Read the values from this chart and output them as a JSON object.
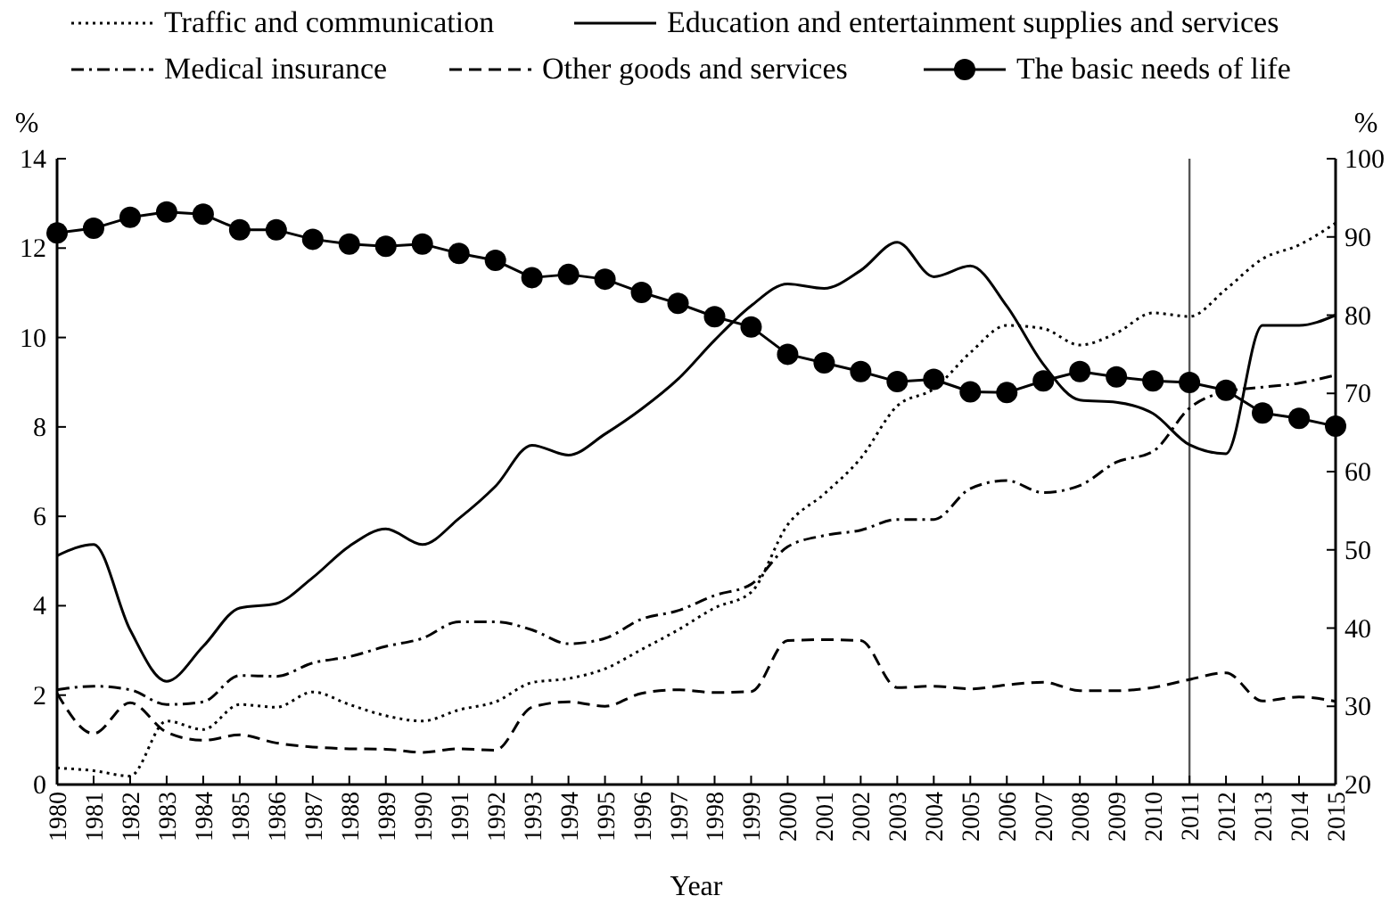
{
  "chart_data": {
    "type": "line",
    "xlabel": "Year",
    "ylabel": "%",
    "y2label": "%",
    "x": [
      1980,
      1981,
      1982,
      1983,
      1984,
      1985,
      1986,
      1987,
      1988,
      1989,
      1990,
      1991,
      1992,
      1993,
      1994,
      1995,
      1996,
      1997,
      1998,
      1999,
      2000,
      2001,
      2002,
      2003,
      2004,
      2005,
      2006,
      2007,
      2008,
      2009,
      2010,
      2011,
      2012,
      2013,
      2014,
      2015
    ],
    "xlim": [
      1980,
      2015
    ],
    "xticks": [
      1980,
      1981,
      1982,
      1983,
      1984,
      1985,
      1986,
      1987,
      1988,
      1989,
      1990,
      1991,
      1992,
      1993,
      1994,
      1995,
      1996,
      1997,
      1998,
      1999,
      2000,
      2001,
      2002,
      2003,
      2004,
      2005,
      2006,
      2007,
      2008,
      2009,
      2010,
      2011,
      2012,
      2013,
      2014,
      2015
    ],
    "ylim": [
      0,
      14
    ],
    "yticks": [
      0,
      2,
      4,
      6,
      8,
      10,
      12,
      14
    ],
    "y2lim": [
      20,
      100
    ],
    "y2ticks": [
      20,
      30,
      40,
      50,
      60,
      70,
      80,
      90,
      100
    ],
    "legend": "top",
    "grid": false,
    "ref_lines": [
      {
        "axis": "x",
        "value": 2011,
        "color": "#555555"
      }
    ],
    "series": [
      {
        "name": "Traffic and communication",
        "color": "#000000",
        "line_style": "dotted",
        "values": [
          0.37,
          0.31,
          0.19,
          1.42,
          1.23,
          1.79,
          1.73,
          2.07,
          1.79,
          1.54,
          1.42,
          1.67,
          1.85,
          2.28,
          2.37,
          2.59,
          3.02,
          3.46,
          3.95,
          4.3,
          5.81,
          6.5,
          7.3,
          8.47,
          8.85,
          9.66,
          10.27,
          10.2,
          9.83,
          10.1,
          10.55,
          10.47,
          11.08,
          11.76,
          12.07,
          12.56
        ]
      },
      {
        "name": "Education and entertainment supplies and services",
        "color": "#000000",
        "line_style": "solid",
        "values": [
          5.12,
          5.37,
          3.46,
          2.31,
          3.09,
          3.95,
          4.05,
          4.63,
          5.33,
          5.72,
          5.37,
          5.95,
          6.67,
          7.59,
          7.37,
          7.84,
          8.4,
          9.07,
          9.94,
          10.71,
          11.2,
          11.1,
          11.5,
          12.13,
          11.36,
          11.6,
          10.7,
          9.4,
          8.6,
          8.55,
          8.3,
          7.6,
          7.4,
          10.27,
          10.27,
          10.5
        ]
      },
      {
        "name": "Medical insurance",
        "color": "#000000",
        "line_style": "dashdot",
        "values": [
          2.12,
          2.2,
          2.12,
          1.79,
          1.85,
          2.44,
          2.42,
          2.72,
          2.86,
          3.09,
          3.27,
          3.64,
          3.64,
          3.46,
          3.15,
          3.27,
          3.7,
          3.89,
          4.23,
          4.48,
          5.32,
          5.57,
          5.69,
          5.93,
          5.93,
          6.62,
          6.8,
          6.53,
          6.69,
          7.21,
          7.45,
          8.42,
          8.79,
          8.89,
          8.98,
          9.16
        ]
      },
      {
        "name": "Other goods and services",
        "color": "#000000",
        "line_style": "dashed",
        "values": [
          2.04,
          1.14,
          1.83,
          1.17,
          0.99,
          1.11,
          0.93,
          0.84,
          0.8,
          0.79,
          0.72,
          0.8,
          0.77,
          1.73,
          1.85,
          1.75,
          2.04,
          2.12,
          2.06,
          2.08,
          3.22,
          3.24,
          3.22,
          2.17,
          2.2,
          2.14,
          2.23,
          2.29,
          2.1,
          2.1,
          2.17,
          2.35,
          2.5,
          1.87,
          1.96,
          1.86
        ]
      },
      {
        "name": "The basic needs of life",
        "color": "#000000",
        "line_style": "solid",
        "marker": "circle",
        "axis": "y2",
        "values": [
          90.5,
          91.1,
          92.5,
          93.2,
          92.9,
          90.9,
          90.9,
          89.7,
          89.1,
          88.8,
          89.1,
          87.9,
          87.0,
          84.8,
          85.2,
          84.6,
          82.9,
          81.5,
          79.8,
          78.5,
          75.0,
          73.9,
          72.8,
          71.5,
          71.8,
          70.2,
          70.1,
          71.6,
          72.8,
          72.1,
          71.6,
          71.4,
          70.4,
          67.5,
          66.8,
          65.8
        ]
      }
    ]
  }
}
